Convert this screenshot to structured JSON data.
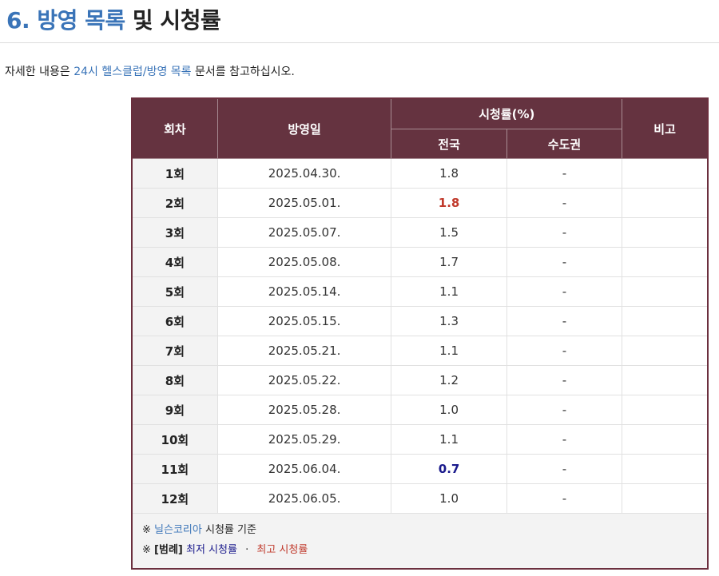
{
  "heading": {
    "number": "6.",
    "link": "방영 목록",
    "rest": "및 시청률"
  },
  "intro": {
    "prefix": "자세한 내용은",
    "link": "24시 헬스클럽/방영 목록",
    "suffix": "문서를 참고하십시오."
  },
  "table": {
    "headers": {
      "episode": "회차",
      "air_date": "방영일",
      "ratings": "시청률(%)",
      "nationwide": "전국",
      "capital": "수도권",
      "notes": "비고"
    },
    "rows": [
      {
        "episode": "1회",
        "date": "2025.04.30.",
        "nationwide": "1.8",
        "capital": "-",
        "note": ""
      },
      {
        "episode": "2회",
        "date": "2025.05.01.",
        "nationwide": "1.8",
        "capital": "-",
        "note": ""
      },
      {
        "episode": "3회",
        "date": "2025.05.07.",
        "nationwide": "1.5",
        "capital": "-",
        "note": ""
      },
      {
        "episode": "4회",
        "date": "2025.05.08.",
        "nationwide": "1.7",
        "capital": "-",
        "note": ""
      },
      {
        "episode": "5회",
        "date": "2025.05.14.",
        "nationwide": "1.1",
        "capital": "-",
        "note": ""
      },
      {
        "episode": "6회",
        "date": "2025.05.15.",
        "nationwide": "1.3",
        "capital": "-",
        "note": ""
      },
      {
        "episode": "7회",
        "date": "2025.05.21.",
        "nationwide": "1.1",
        "capital": "-",
        "note": ""
      },
      {
        "episode": "8회",
        "date": "2025.05.22.",
        "nationwide": "1.2",
        "capital": "-",
        "note": ""
      },
      {
        "episode": "9회",
        "date": "2025.05.28.",
        "nationwide": "1.0",
        "capital": "-",
        "note": ""
      },
      {
        "episode": "10회",
        "date": "2025.05.29.",
        "nationwide": "1.1",
        "capital": "-",
        "note": ""
      },
      {
        "episode": "11회",
        "date": "2025.06.04.",
        "nationwide": "0.7",
        "capital": "-",
        "note": ""
      },
      {
        "episode": "12회",
        "date": "2025.06.05.",
        "nationwide": "1.0",
        "capital": "-",
        "note": ""
      }
    ],
    "highlight": {
      "highest_row": 1,
      "lowest_row": 10
    },
    "footnote": {
      "line1_mark": "※",
      "line1_link": "닐슨코리아",
      "line1_text": "시청률 기준",
      "line2_mark": "※",
      "line2_label": "[범례]",
      "lowest_label": "최저 시청률",
      "separator": "·",
      "highest_label": "최고 시청률"
    },
    "colors": {
      "header_bg": "#653340",
      "link": "#3a74b8",
      "lowest": "#1a1a8c",
      "highest": "#c0392b"
    }
  }
}
